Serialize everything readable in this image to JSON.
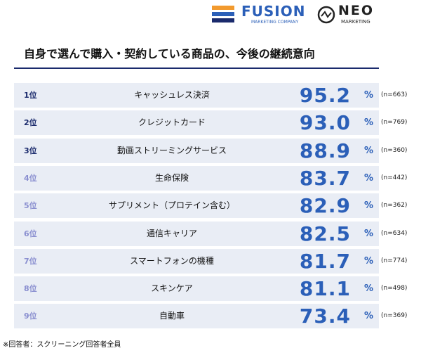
{
  "header": {
    "fusion": "FUSION",
    "fusion_sub": "MARKETING COMPANY",
    "neo": "NEO",
    "neo_sub": "MARKETING"
  },
  "title": "自身で選んで購入・契約している商品の、今後の継続意向",
  "unit": "%",
  "rows": [
    {
      "rank": "1位",
      "name": "キャッシュレス決済",
      "value": "95.2",
      "n": "(n=663)"
    },
    {
      "rank": "2位",
      "name": "クレジットカード",
      "value": "93.0",
      "n": "(n=769)"
    },
    {
      "rank": "3位",
      "name": "動画ストリーミングサービス",
      "value": "88.9",
      "n": "(n=360)"
    },
    {
      "rank": "4位",
      "name": "生命保険",
      "value": "83.7",
      "n": "(n=442)"
    },
    {
      "rank": "5位",
      "name": "サプリメント（プロテイン含む）",
      "value": "82.9",
      "n": "(n=362)"
    },
    {
      "rank": "6位",
      "name": "通信キャリア",
      "value": "82.5",
      "n": "(n=634)"
    },
    {
      "rank": "7位",
      "name": "スマートフォンの機種",
      "value": "81.7",
      "n": "(n=774)"
    },
    {
      "rank": "8位",
      "name": "スキンケア",
      "value": "81.1",
      "n": "(n=498)"
    },
    {
      "rank": "9位",
      "name": "自動車",
      "value": "73.4",
      "n": "(n=369)"
    }
  ],
  "footnote": "※回答者：スクリーニング回答者全員"
}
